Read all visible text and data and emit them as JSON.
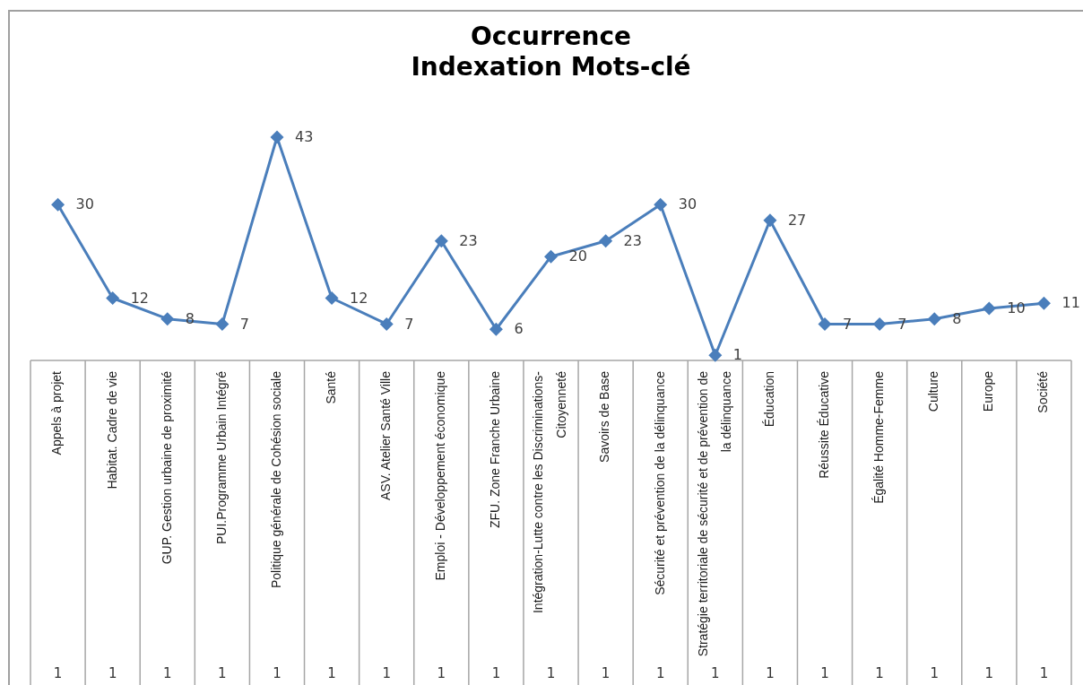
{
  "chart_data": {
    "type": "line",
    "title": "Occurrence\nIndexation Mots-clé",
    "categories": [
      "Appels à projet",
      "Habitat. Cadre de vie",
      "GUP. Gestion urbaine de proximité",
      "PUI.Programme Urbain Intégré",
      "Politique générale de Cohésion sociale",
      "Santé",
      "ASV. Atelier Santé Ville",
      "Emploi - Développement économique",
      "ZFU. Zone Franche Urbaine",
      "Intégration-Lutte contre les Discriminations-Citoyenneté",
      "Savoirs de Base",
      "Sécurité et prévention de la délinquance",
      "Stratégie territoriale de sécurité et de prévention de la délinquance",
      "Éducation",
      "Réussite Éducative",
      "Égalité Homme-Femme",
      "Culture",
      "Europe",
      "Société"
    ],
    "values": [
      30,
      12,
      8,
      7,
      43,
      12,
      7,
      23,
      6,
      20,
      23,
      30,
      1,
      27,
      7,
      7,
      8,
      10,
      11
    ],
    "color": "#4a7ebb",
    "marker": "diamond",
    "line_style": "solid",
    "data_labels": true,
    "annotations": [
      "1",
      "1",
      "1",
      "1",
      "1",
      "1",
      "1",
      "1",
      "1",
      "1",
      "1",
      "1",
      "1",
      "1",
      "1",
      "1",
      "1",
      "1",
      "1"
    ]
  }
}
